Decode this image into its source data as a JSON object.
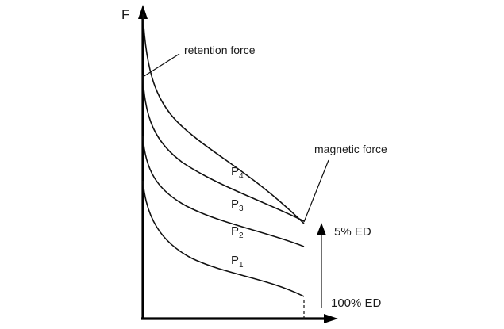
{
  "axis": {
    "y_label": "F"
  },
  "annotations": {
    "retention_force": "retention force",
    "magnetic_force": "magnetic force",
    "ed_top": "5% ED",
    "ed_bottom": "100% ED"
  },
  "curves": [
    {
      "letter": "P",
      "subscript": "4"
    },
    {
      "letter": "P",
      "subscript": "3"
    },
    {
      "letter": "P",
      "subscript": "2"
    },
    {
      "letter": "P",
      "subscript": "1"
    }
  ],
  "colors": {
    "line": "#111111",
    "background": "#ffffff"
  }
}
